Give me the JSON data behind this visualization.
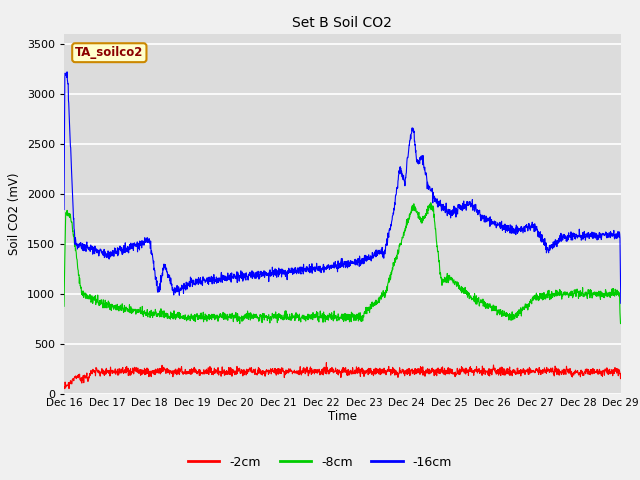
{
  "title": "Set B Soil CO2",
  "ylabel": "Soil CO2 (mV)",
  "xlabel": "Time",
  "annotation": "TA_soilco2",
  "ylim": [
    0,
    3600
  ],
  "yticks": [
    0,
    500,
    1000,
    1500,
    2000,
    2500,
    3000,
    3500
  ],
  "legend_labels": [
    "-2cm",
    "-8cm",
    "-16cm"
  ],
  "legend_colors": [
    "#ff0000",
    "#00cc00",
    "#0000ff"
  ],
  "fig_bg": "#f0f0f0",
  "plot_bg": "#dcdcdc",
  "grid_color": "#ffffff",
  "xtick_labels": [
    "Dec 16",
    "Dec 17",
    "Dec 18",
    "Dec 19",
    "Dec 20",
    "Dec 21",
    "Dec 22",
    "Dec 23",
    "Dec 24",
    "Dec 25",
    "Dec 26",
    "Dec 27",
    "Dec 28",
    "Dec 29"
  ],
  "num_points": 2000
}
